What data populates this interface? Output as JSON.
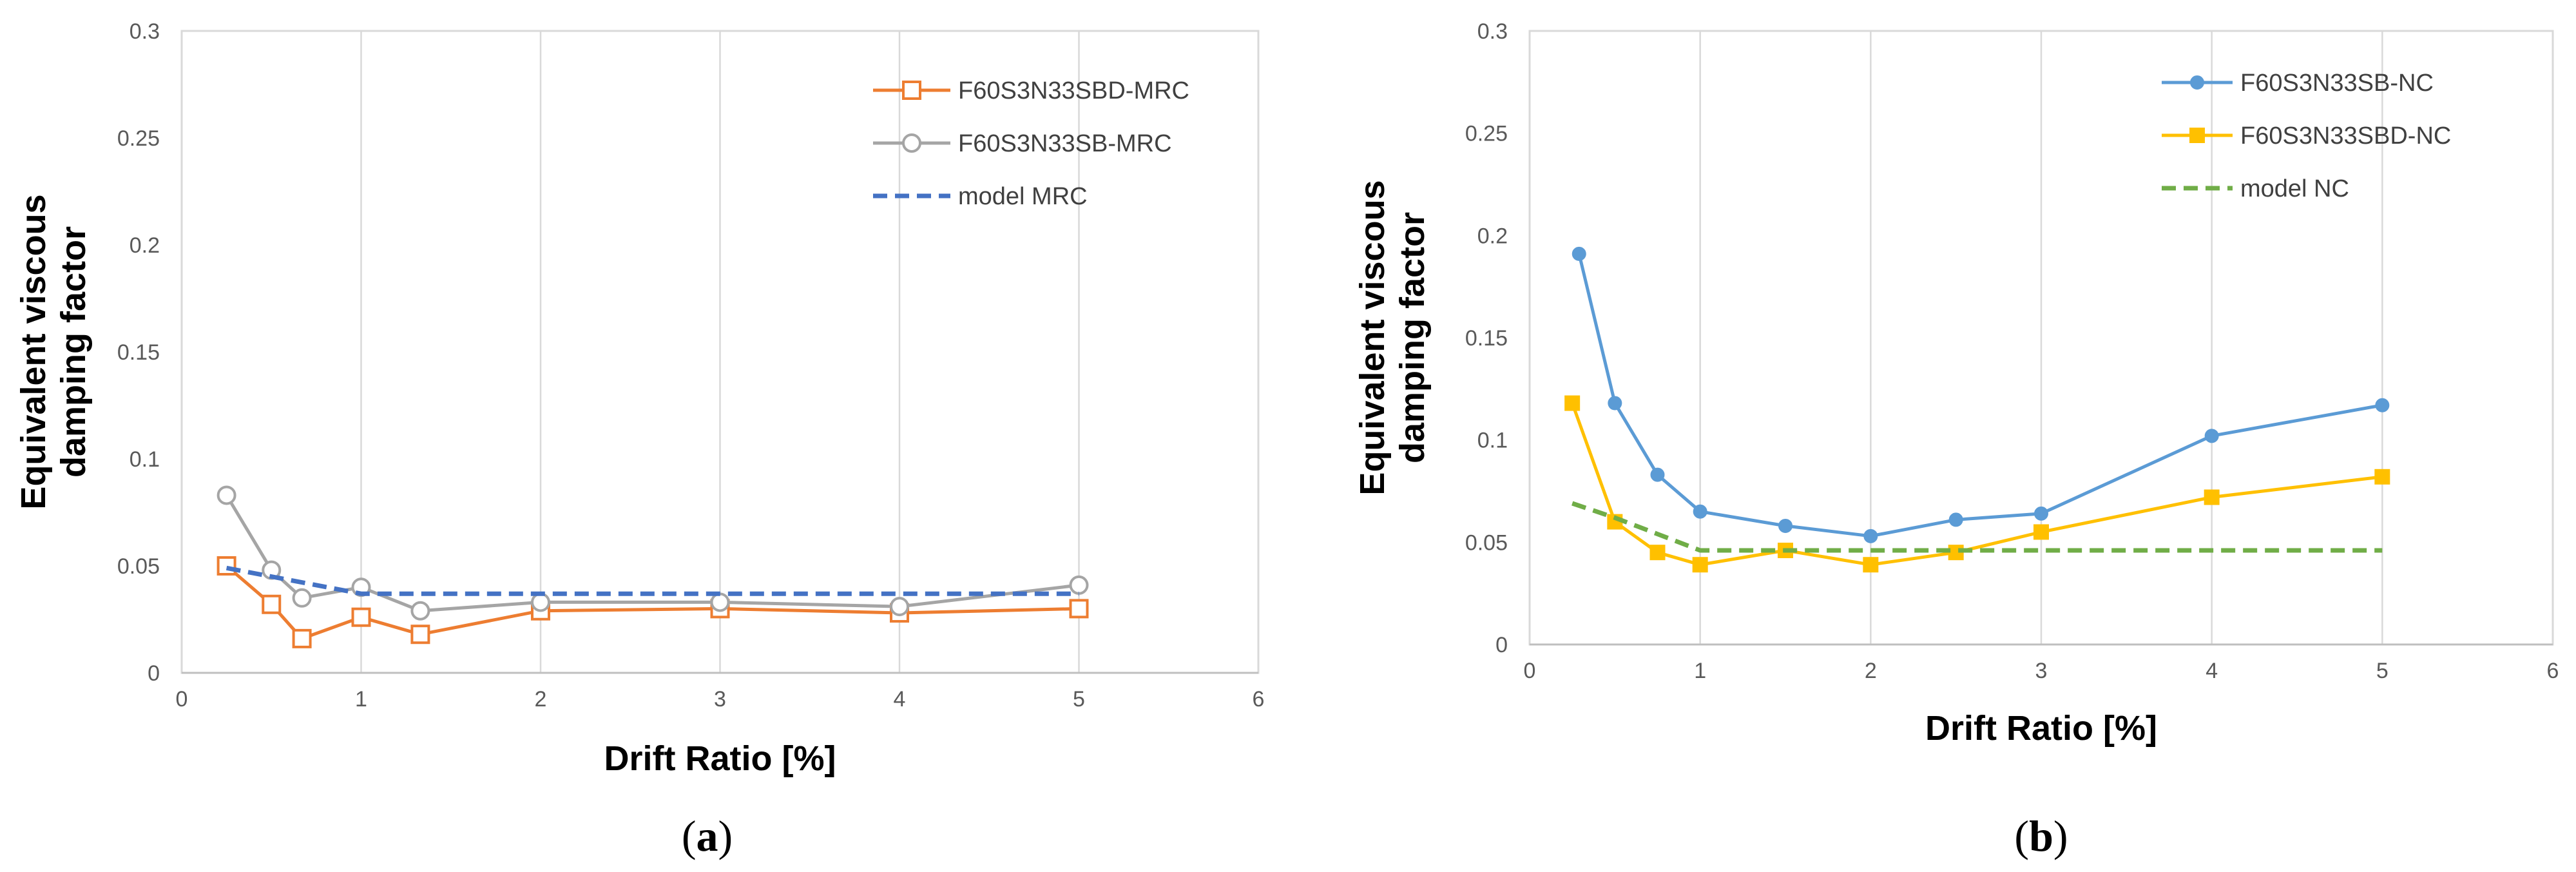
{
  "chart_data": [
    {
      "type": "line",
      "panel_label": "a",
      "title": "",
      "xlabel": "Drift Ratio [%]",
      "ylabel_line1": "Equivalent viscous",
      "ylabel_line2": "damping factor",
      "xlim": [
        0,
        6
      ],
      "ylim": [
        0,
        0.3
      ],
      "xticks": [
        0,
        1,
        2,
        3,
        4,
        5,
        6
      ],
      "xtick_labels": [
        "0",
        "1",
        "2",
        "3",
        "4",
        "5",
        "6"
      ],
      "yticks": [
        0,
        0.05,
        0.1,
        0.15,
        0.2,
        0.25,
        0.3
      ],
      "ytick_labels": [
        "0",
        "0.05",
        "0.1",
        "0.15",
        "0.2",
        "0.25",
        "0.3"
      ],
      "grid": "vertical",
      "legend_position": "top-right",
      "series": [
        {
          "name": "F60S3N33SBD-MRC",
          "color": "#ED7D31",
          "marker": "square-open",
          "dash": "solid",
          "x": [
            0.25,
            0.5,
            0.67,
            1,
            1.33,
            2,
            3,
            4,
            5
          ],
          "y": [
            0.05,
            0.032,
            0.016,
            0.026,
            0.018,
            0.029,
            0.03,
            0.028,
            0.03
          ]
        },
        {
          "name": "F60S3N33SB-MRC",
          "color": "#A5A5A5",
          "marker": "circle-open",
          "dash": "solid",
          "x": [
            0.25,
            0.5,
            0.67,
            1,
            1.33,
            2,
            3,
            4,
            5
          ],
          "y": [
            0.083,
            0.048,
            0.035,
            0.04,
            0.029,
            0.033,
            0.033,
            0.031,
            0.041
          ]
        },
        {
          "name": "model MRC",
          "color": "#4472C4",
          "marker": "none",
          "dash": "dashed",
          "x": [
            0.25,
            1,
            2,
            3,
            4,
            5
          ],
          "y": [
            0.049,
            0.037,
            0.037,
            0.037,
            0.037,
            0.037
          ]
        }
      ]
    },
    {
      "type": "line",
      "panel_label": "b",
      "title": "",
      "xlabel": "Drift Ratio [%]",
      "ylabel_line1": "Equivalent viscous",
      "ylabel_line2": "damping factor",
      "xlim": [
        0,
        6
      ],
      "ylim": [
        0,
        0.3
      ],
      "xticks": [
        0,
        1,
        2,
        3,
        4,
        5,
        6
      ],
      "xtick_labels": [
        "0",
        "1",
        "2",
        "3",
        "4",
        "5",
        "6"
      ],
      "yticks": [
        0,
        0.05,
        0.1,
        0.15,
        0.2,
        0.25,
        0.3
      ],
      "ytick_labels": [
        "0",
        "0.05",
        "0.1",
        "0.15",
        "0.2",
        "0.25",
        "0.3"
      ],
      "grid": "vertical",
      "legend_position": "top-right",
      "series": [
        {
          "name": "F60S3N33SB-NC",
          "color": "#5B9BD5",
          "marker": "circle-filled",
          "dash": "solid",
          "x": [
            0.29,
            0.5,
            0.75,
            1,
            1.5,
            2,
            2.5,
            3,
            4,
            5
          ],
          "y": [
            0.191,
            0.118,
            0.083,
            0.065,
            0.058,
            0.053,
            0.061,
            0.064,
            0.102,
            0.117
          ]
        },
        {
          "name": "F60S3N33SBD-NC",
          "color": "#FFC000",
          "marker": "square-filled",
          "dash": "solid",
          "x": [
            0.25,
            0.5,
            0.75,
            1,
            1.5,
            2,
            2.5,
            3,
            4,
            5
          ],
          "y": [
            0.118,
            0.06,
            0.045,
            0.039,
            0.046,
            0.039,
            0.045,
            0.055,
            0.072,
            0.082
          ]
        },
        {
          "name": "model NC",
          "color": "#70AD47",
          "marker": "none",
          "dash": "dashed",
          "x": [
            0.25,
            0.5,
            0.75,
            1,
            2,
            3,
            4,
            5
          ],
          "y": [
            0.069,
            0.062,
            0.054,
            0.046,
            0.046,
            0.046,
            0.046,
            0.046
          ]
        }
      ]
    }
  ]
}
